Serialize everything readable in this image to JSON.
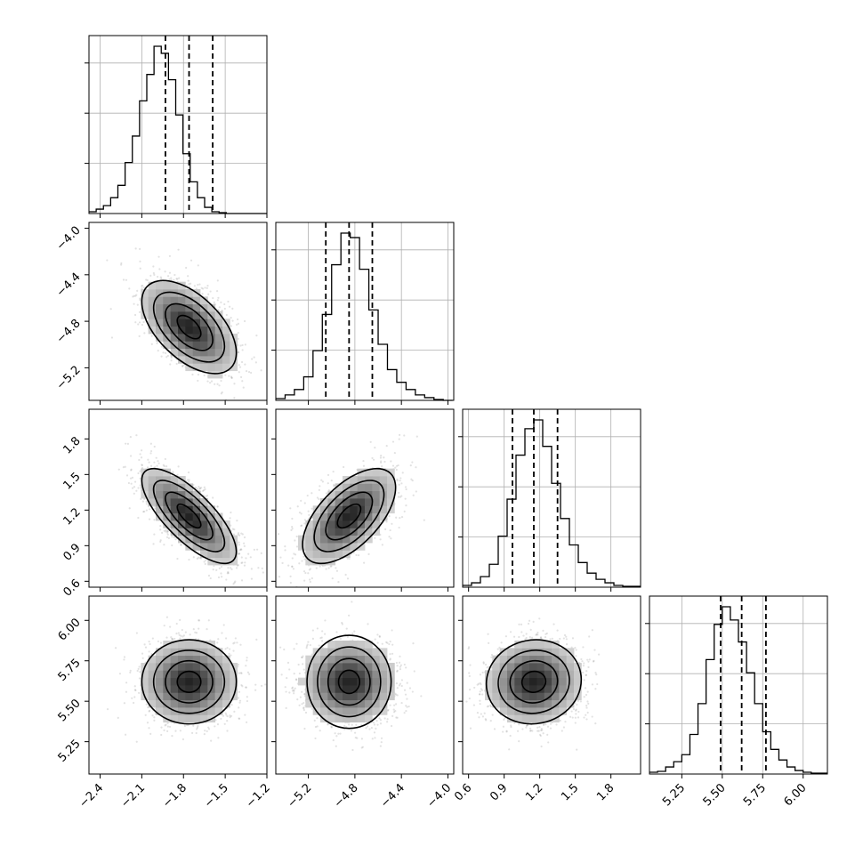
{
  "chart_data": {
    "type": "corner",
    "n_params": 4,
    "grid": true,
    "params": [
      {
        "range": [
          -2.48,
          -1.2
        ],
        "ticks": [
          -2.4,
          -2.1,
          -1.8,
          -1.5,
          -1.2
        ],
        "tick_labels": [
          "−2.4",
          "−2.1",
          "−1.8",
          "−1.5",
          "−1.2"
        ],
        "mean": -1.76,
        "sd": 0.17,
        "quantiles": [
          -1.93,
          -1.76,
          -1.59
        ],
        "hist_edges": [
          -2.48,
          -2.428,
          -2.376,
          -2.324,
          -2.272,
          -2.22,
          -2.168,
          -2.116,
          -2.064,
          -2.012,
          -1.96,
          -1.908,
          -1.856,
          -1.804,
          -1.752,
          -1.7,
          -1.648,
          -1.596,
          -1.544,
          -1.492,
          -1.44,
          -1.388,
          -1.336,
          -1.284,
          -1.232,
          -1.18
        ],
        "hist_counts": [
          2,
          5,
          9,
          18,
          32,
          58,
          88,
          128,
          158,
          190,
          182,
          152,
          112,
          68,
          36,
          18,
          7,
          2,
          1,
          0,
          0,
          0,
          0,
          0,
          0
        ]
      },
      {
        "range": [
          -5.48,
          -3.95
        ],
        "ticks": [
          -5.2,
          -4.8,
          -4.4,
          -4.0
        ],
        "tick_labels": [
          "−5.2",
          "−4.8",
          "−4.4",
          "−4.0"
        ],
        "mean": -4.85,
        "sd": 0.2,
        "quantiles": [
          -5.05,
          -4.85,
          -4.65
        ],
        "hist_edges": [
          -5.48,
          -5.4,
          -5.32,
          -5.24,
          -5.16,
          -5.08,
          -5.0,
          -4.92,
          -4.84,
          -4.76,
          -4.68,
          -4.6,
          -4.52,
          -4.44,
          -4.36,
          -4.28,
          -4.2,
          -4.12,
          -4.04,
          -3.96
        ],
        "hist_counts": [
          2,
          6,
          12,
          26,
          55,
          95,
          150,
          185,
          180,
          145,
          100,
          62,
          34,
          20,
          12,
          6,
          3,
          1,
          0
        ]
      },
      {
        "range": [
          0.55,
          2.05
        ],
        "ticks": [
          0.6,
          0.9,
          1.2,
          1.5,
          1.8
        ],
        "tick_labels": [
          "0.6",
          "0.9",
          "1.2",
          "1.5",
          "1.8"
        ],
        "mean": 1.15,
        "sd": 0.2,
        "quantiles": [
          0.97,
          1.15,
          1.35
        ],
        "hist_edges": [
          0.55,
          0.625,
          0.7,
          0.775,
          0.85,
          0.925,
          1.0,
          1.075,
          1.15,
          1.225,
          1.3,
          1.375,
          1.45,
          1.525,
          1.6,
          1.675,
          1.75,
          1.825,
          1.9,
          1.975,
          2.05
        ],
        "hist_counts": [
          2,
          5,
          12,
          26,
          58,
          100,
          150,
          180,
          190,
          160,
          118,
          78,
          48,
          28,
          16,
          9,
          5,
          2,
          1,
          1
        ]
      },
      {
        "range": [
          5.05,
          6.15
        ],
        "ticks": [
          5.25,
          5.5,
          5.75,
          6.0
        ],
        "tick_labels": [
          "5.25",
          "5.50",
          "5.75",
          "6.00"
        ],
        "mean": 5.62,
        "sd": 0.13,
        "quantiles": [
          5.49,
          5.62,
          5.77
        ],
        "hist_edges": [
          5.05,
          5.1,
          5.15,
          5.2,
          5.25,
          5.3,
          5.35,
          5.4,
          5.45,
          5.5,
          5.55,
          5.6,
          5.65,
          5.7,
          5.75,
          5.8,
          5.85,
          5.9,
          5.95,
          6.0,
          6.05,
          6.1,
          6.15
        ],
        "hist_counts": [
          2,
          3,
          8,
          14,
          22,
          45,
          80,
          130,
          170,
          190,
          175,
          150,
          115,
          80,
          48,
          28,
          16,
          8,
          4,
          2,
          1,
          1
        ]
      }
    ],
    "correlations": {
      "1-0": -0.55,
      "2-0": -0.75,
      "2-1": 0.6,
      "3-0": 0.0,
      "3-1": 0.0,
      "3-2": 0.05
    },
    "contour_levels_sigma": [
      0.5,
      1.0,
      1.5,
      2.0
    ]
  }
}
